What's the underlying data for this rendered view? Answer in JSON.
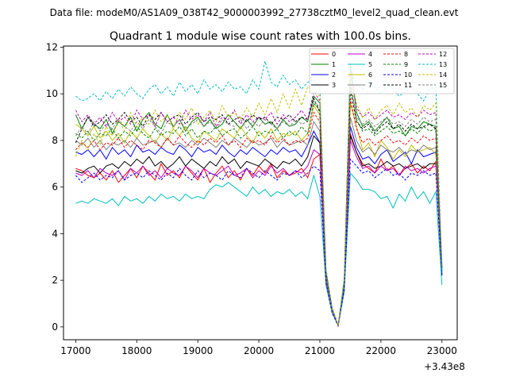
{
  "suptitle": "Data file: modeM0/AS1A09_038T42_9000003992_27738cztM0_level2_quad_clean.evt",
  "title": "Quadrant 1 module wise count rates with 100.0s bins.",
  "offset_label": "+3.43e8",
  "chart_data": {
    "type": "line",
    "title": "Quadrant 1 module wise count rates with 100.0s bins.",
    "x_offset": 343000000,
    "xlim": [
      16800,
      23250
    ],
    "ylim": [
      -0.55,
      12.05
    ],
    "xticks": [
      17000,
      18000,
      19000,
      20000,
      21000,
      22000,
      23000
    ],
    "yticks": [
      0,
      2,
      4,
      6,
      8,
      10,
      12
    ],
    "x_start": 17000,
    "x_step": 100,
    "legend_location": "upper-right",
    "legend_columns": 4,
    "grid": false,
    "series": [
      {
        "name": "0",
        "color": "#ff0000",
        "dash": "solid",
        "values": [
          6.8,
          6.7,
          6.5,
          6.4,
          6.6,
          6.3,
          6.7,
          6.2,
          6.5,
          6.8,
          6.4,
          6.9,
          6.6,
          6.3,
          7.0,
          6.5,
          6.7,
          6.4,
          6.9,
          6.6,
          6.3,
          6.8,
          6.2,
          6.6,
          6.9,
          6.4,
          6.7,
          6.3,
          6.8,
          6.5,
          6.9,
          6.6,
          7.0,
          6.4,
          6.7,
          6.5,
          6.6,
          6.8,
          6.4,
          7.2,
          7.4,
          2.0,
          0.7,
          0.05,
          1.7,
          8.3,
          7.5,
          7.0,
          6.8,
          6.6,
          7.2,
          6.7,
          6.9,
          6.5,
          6.8,
          7.0,
          6.6,
          6.9,
          6.7,
          7.1,
          2.6
        ]
      },
      {
        "name": "1",
        "color": "#008000",
        "dash": "solid",
        "values": [
          9.1,
          8.5,
          9.0,
          8.7,
          8.5,
          8.9,
          8.3,
          8.8,
          8.6,
          9.0,
          8.4,
          8.9,
          9.2,
          8.7,
          8.5,
          9.1,
          8.6,
          8.9,
          8.4,
          8.8,
          9.0,
          8.6,
          8.9,
          8.5,
          8.7,
          9.1,
          8.8,
          8.5,
          8.9,
          8.6,
          9.0,
          8.7,
          8.8,
          8.5,
          8.9,
          8.6,
          8.7,
          9.0,
          8.8,
          9.9,
          9.6,
          2.4,
          0.8,
          0.05,
          2.0,
          11.3,
          9.2,
          8.6,
          8.8,
          8.4,
          8.7,
          9.0,
          8.5,
          8.6,
          8.2,
          8.6,
          8.5,
          8.8,
          8.7,
          8.6,
          2.5
        ]
      },
      {
        "name": "2",
        "color": "#0000ff",
        "dash": "solid",
        "values": [
          7.5,
          7.4,
          7.6,
          7.3,
          7.6,
          7.2,
          7.7,
          7.4,
          7.6,
          7.3,
          7.8,
          7.5,
          7.6,
          7.4,
          7.7,
          7.5,
          7.4,
          7.8,
          7.6,
          7.3,
          7.7,
          7.5,
          7.6,
          7.4,
          7.8,
          7.5,
          7.3,
          7.6,
          7.4,
          7.7,
          7.5,
          7.3,
          7.6,
          7.4,
          7.7,
          7.5,
          7.6,
          7.3,
          7.8,
          8.4,
          7.9,
          2.1,
          0.7,
          0.05,
          1.8,
          8.6,
          7.7,
          7.2,
          7.3,
          7.0,
          7.4,
          7.6,
          7.1,
          7.3,
          7.5,
          7.0,
          7.6,
          7.3,
          7.4,
          7.5,
          2.2
        ]
      },
      {
        "name": "3",
        "color": "#000000",
        "dash": "solid",
        "values": [
          6.7,
          6.6,
          6.8,
          6.9,
          6.6,
          6.9,
          7.0,
          6.8,
          7.1,
          6.9,
          7.2,
          7.0,
          7.3,
          6.9,
          7.1,
          6.8,
          7.0,
          7.3,
          6.9,
          7.2,
          7.0,
          6.8,
          7.1,
          6.9,
          7.3,
          7.0,
          7.2,
          6.8,
          7.1,
          7.0,
          6.9,
          7.2,
          7.0,
          6.8,
          7.1,
          7.0,
          7.2,
          6.9,
          7.3,
          8.2,
          7.9,
          2.0,
          0.7,
          0.05,
          1.7,
          8.2,
          7.5,
          6.9,
          7.0,
          6.8,
          6.9,
          7.1,
          6.9,
          7.0,
          6.8,
          6.9,
          7.0,
          6.8,
          7.0,
          7.0,
          2.4
        ]
      },
      {
        "name": "4",
        "color": "#c000c0",
        "dash": "solid",
        "values": [
          6.6,
          6.5,
          6.7,
          6.4,
          6.8,
          6.6,
          6.5,
          6.7,
          6.3,
          6.8,
          6.6,
          6.9,
          6.5,
          6.7,
          6.4,
          6.8,
          6.6,
          6.5,
          6.9,
          6.7,
          6.4,
          6.8,
          6.6,
          6.5,
          6.7,
          6.9,
          6.5,
          6.6,
          6.8,
          6.4,
          6.7,
          6.5,
          6.9,
          6.6,
          6.8,
          6.5,
          6.7,
          6.6,
          6.9,
          7.6,
          7.4,
          2.0,
          0.7,
          0.05,
          1.6,
          8.0,
          7.3,
          6.8,
          6.9,
          6.6,
          6.9,
          6.7,
          6.8,
          6.5,
          6.9,
          6.7,
          6.8,
          6.6,
          6.8,
          6.9,
          2.3
        ]
      },
      {
        "name": "5",
        "color": "#00bfbf",
        "dash": "solid",
        "values": [
          5.3,
          5.4,
          5.3,
          5.5,
          5.4,
          5.3,
          5.5,
          5.2,
          5.6,
          5.4,
          5.5,
          5.3,
          5.6,
          5.4,
          5.7,
          5.5,
          5.6,
          5.4,
          5.7,
          5.5,
          5.6,
          5.5,
          5.9,
          6.1,
          6.0,
          6.2,
          6.0,
          5.8,
          5.6,
          6.0,
          5.7,
          5.9,
          5.6,
          5.8,
          5.7,
          5.9,
          5.6,
          5.8,
          5.5,
          6.5,
          5.6,
          1.8,
          0.6,
          0.05,
          1.5,
          6.6,
          6.3,
          5.9,
          5.9,
          5.8,
          5.5,
          5.6,
          5.1,
          5.7,
          5.4,
          6.0,
          5.5,
          5.8,
          5.3,
          5.8,
          1.8
        ]
      },
      {
        "name": "6",
        "color": "#bfbf00",
        "dash": "solid",
        "values": [
          8.7,
          8.5,
          8.2,
          8.6,
          8.1,
          8.4,
          8.0,
          8.3,
          7.9,
          8.4,
          8.1,
          8.5,
          8.2,
          7.9,
          8.3,
          8.0,
          8.5,
          8.2,
          8.6,
          8.1,
          7.9,
          8.4,
          8.2,
          8.0,
          8.5,
          8.3,
          8.1,
          8.6,
          8.2,
          7.9,
          8.4,
          8.1,
          8.5,
          8.0,
          8.3,
          8.2,
          8.4,
          8.0,
          8.3,
          9.5,
          9.1,
          2.3,
          0.8,
          0.05,
          1.9,
          9.6,
          8.6,
          7.6,
          7.9,
          7.3,
          8.0,
          7.7,
          7.2,
          7.6,
          7.3,
          7.8,
          7.5,
          7.6,
          7.7,
          7.4,
          2.5
        ]
      },
      {
        "name": "7",
        "color": "#7f7f7f",
        "dash": "solid",
        "values": [
          8.0,
          7.8,
          8.1,
          7.7,
          8.0,
          7.6,
          7.9,
          7.8,
          8.0,
          7.7,
          8.1,
          7.8,
          7.9,
          8.0,
          7.7,
          8.1,
          7.8,
          7.9,
          7.7,
          8.0,
          7.8,
          8.1,
          7.9,
          7.7,
          8.0,
          7.8,
          8.1,
          7.9,
          7.7,
          8.0,
          7.8,
          7.9,
          8.1,
          7.7,
          8.0,
          7.8,
          7.9,
          8.0,
          7.8,
          8.8,
          8.4,
          2.1,
          0.7,
          0.05,
          1.8,
          9.0,
          8.0,
          7.5,
          7.7,
          7.4,
          7.8,
          7.6,
          7.5,
          7.7,
          7.4,
          7.6,
          7.5,
          7.8,
          7.6,
          7.7,
          2.4
        ]
      },
      {
        "name": "8",
        "color": "#ff0000",
        "dash": "dashed",
        "values": [
          7.6,
          7.9,
          7.7,
          8.0,
          7.6,
          7.9,
          7.8,
          8.1,
          7.7,
          8.0,
          7.8,
          7.6,
          8.0,
          7.9,
          7.7,
          8.1,
          7.8,
          8.2,
          7.9,
          7.7,
          8.0,
          7.8,
          8.1,
          7.9,
          8.2,
          7.8,
          8.0,
          7.7,
          8.1,
          7.9,
          8.0,
          7.8,
          8.2,
          7.9,
          8.1,
          7.8,
          8.0,
          7.9,
          8.1,
          9.2,
          8.8,
          2.2,
          0.8,
          0.05,
          1.9,
          9.8,
          8.5,
          7.9,
          8.1,
          7.8,
          8.0,
          8.2,
          7.9,
          8.0,
          7.8,
          8.1,
          7.9,
          8.2,
          8.0,
          8.1,
          2.6
        ]
      },
      {
        "name": "9",
        "color": "#008000",
        "dash": "dashed",
        "values": [
          8.3,
          8.1,
          8.4,
          8.0,
          8.3,
          8.2,
          8.5,
          8.1,
          8.4,
          8.2,
          8.6,
          8.3,
          8.1,
          8.5,
          8.2,
          8.4,
          8.3,
          8.6,
          8.2,
          8.5,
          8.1,
          8.4,
          8.3,
          8.6,
          8.2,
          8.4,
          8.5,
          8.1,
          8.3,
          8.6,
          8.2,
          8.4,
          8.3,
          8.5,
          8.1,
          8.4,
          8.2,
          8.6,
          8.3,
          9.6,
          9.3,
          2.3,
          0.8,
          0.05,
          1.9,
          10.6,
          8.9,
          8.4,
          8.5,
          8.2,
          8.4,
          8.6,
          8.3,
          8.4,
          8.2,
          8.5,
          8.3,
          8.6,
          8.4,
          8.5,
          2.4
        ]
      },
      {
        "name": "10",
        "color": "#0000ff",
        "dash": "dashed",
        "values": [
          6.5,
          6.2,
          6.4,
          6.6,
          6.3,
          6.5,
          6.4,
          6.7,
          6.3,
          6.5,
          6.6,
          6.4,
          6.7,
          6.5,
          6.3,
          6.6,
          6.4,
          6.8,
          6.5,
          6.3,
          6.7,
          6.4,
          6.6,
          6.5,
          6.3,
          6.7,
          6.5,
          6.4,
          6.8,
          6.6,
          6.4,
          6.7,
          6.5,
          6.3,
          6.6,
          6.5,
          6.7,
          6.4,
          6.6,
          6.9,
          6.7,
          1.9,
          0.6,
          0.05,
          1.6,
          7.2,
          6.9,
          6.6,
          6.7,
          6.4,
          6.6,
          6.8,
          6.5,
          6.6,
          6.3,
          6.6,
          6.5,
          6.7,
          6.5,
          6.6,
          2.2
        ]
      },
      {
        "name": "11",
        "color": "#000000",
        "dash": "dashed",
        "values": [
          7.9,
          8.5,
          9.0,
          8.6,
          8.8,
          9.1,
          8.7,
          8.9,
          9.2,
          8.8,
          9.0,
          8.6,
          9.1,
          8.9,
          9.2,
          8.8,
          9.0,
          9.1,
          8.7,
          9.0,
          9.2,
          8.8,
          9.0,
          8.9,
          9.1,
          8.7,
          8.9,
          9.0,
          8.8,
          9.1,
          8.9,
          9.0,
          8.7,
          9.0,
          8.9,
          9.1,
          8.8,
          9.0,
          8.9,
          9.8,
          9.2,
          2.3,
          0.8,
          0.05,
          1.9,
          10.2,
          8.8,
          8.5,
          8.7,
          8.3,
          8.6,
          8.8,
          8.5,
          8.7,
          8.4,
          8.7,
          8.5,
          8.6,
          8.7,
          8.5,
          2.5
        ]
      },
      {
        "name": "12",
        "color": "#c000c0",
        "dash": "dashed",
        "values": [
          9.3,
          8.8,
          9.1,
          8.7,
          9.0,
          8.6,
          9.2,
          8.8,
          9.0,
          8.7,
          9.3,
          8.9,
          9.1,
          8.6,
          9.2,
          8.8,
          9.0,
          8.7,
          9.3,
          8.9,
          9.1,
          8.8,
          9.2,
          8.6,
          9.0,
          8.9,
          9.3,
          8.7,
          9.1,
          8.8,
          9.0,
          8.9,
          9.2,
          8.7,
          9.1,
          8.8,
          9.0,
          9.3,
          8.9,
          10.1,
          9.7,
          2.4,
          0.8,
          0.05,
          2.0,
          11.0,
          9.4,
          9.0,
          9.2,
          8.9,
          9.1,
          9.3,
          9.0,
          9.1,
          8.9,
          9.2,
          9.0,
          9.3,
          9.1,
          9.2,
          2.6
        ]
      },
      {
        "name": "13",
        "color": "#00bfbf",
        "dash": "dashed",
        "values": [
          9.9,
          9.7,
          9.8,
          10.0,
          9.7,
          10.1,
          9.8,
          10.2,
          9.9,
          10.3,
          10.0,
          9.8,
          10.2,
          10.4,
          10.0,
          10.3,
          9.9,
          10.5,
          10.1,
          10.4,
          10.0,
          10.6,
          10.2,
          10.4,
          10.1,
          10.5,
          10.2,
          10.3,
          10.0,
          10.6,
          10.2,
          11.4,
          10.5,
          10.3,
          10.8,
          10.4,
          10.6,
          10.2,
          10.5,
          10.6,
          10.3,
          2.5,
          0.8,
          0.05,
          2.1,
          11.1,
          10.4,
          10.2,
          10.6,
          10.3,
          10.0,
          10.4,
          10.2,
          9.9,
          10.1,
          10.3,
          10.0,
          9.7,
          10.2,
          10.3,
          2.4
        ]
      },
      {
        "name": "14",
        "color": "#bfbf00",
        "dash": "dashed",
        "values": [
          7.3,
          8.0,
          7.6,
          8.3,
          7.8,
          8.6,
          8.2,
          8.9,
          8.4,
          9.2,
          8.6,
          9.0,
          8.7,
          9.3,
          8.8,
          9.1,
          8.5,
          9.2,
          8.9,
          9.4,
          8.7,
          9.0,
          9.3,
          8.8,
          9.5,
          9.0,
          9.2,
          8.9,
          9.4,
          9.0,
          9.6,
          9.1,
          9.8,
          9.2,
          10.0,
          9.4,
          10.2,
          9.5,
          10.3,
          10.1,
          9.9,
          2.4,
          0.8,
          0.05,
          2.0,
          10.8,
          9.6,
          9.0,
          9.4,
          8.9,
          9.3,
          9.5,
          9.1,
          9.6,
          9.2,
          9.4,
          9.0,
          9.5,
          9.3,
          9.6,
          2.6
        ]
      },
      {
        "name": "15",
        "color": "#7f7f7f",
        "dash": "dashed",
        "values": [
          8.2,
          8.6,
          8.3,
          8.8,
          8.4,
          8.7,
          8.5,
          8.9,
          8.6,
          8.4,
          8.8,
          8.5,
          8.9,
          8.6,
          8.3,
          8.8,
          8.6,
          8.9,
          8.5,
          8.7,
          8.9,
          8.6,
          8.8,
          8.5,
          8.9,
          8.7,
          8.6,
          8.9,
          8.5,
          8.8,
          8.6,
          8.9,
          8.7,
          8.5,
          8.8,
          8.6,
          8.9,
          8.7,
          8.8,
          9.7,
          9.4,
          2.3,
          0.8,
          0.05,
          1.9,
          10.4,
          9.0,
          8.7,
          8.9,
          8.6,
          8.8,
          9.0,
          8.7,
          8.8,
          8.6,
          8.9,
          8.7,
          9.0,
          8.8,
          8.9,
          2.5
        ]
      }
    ]
  }
}
